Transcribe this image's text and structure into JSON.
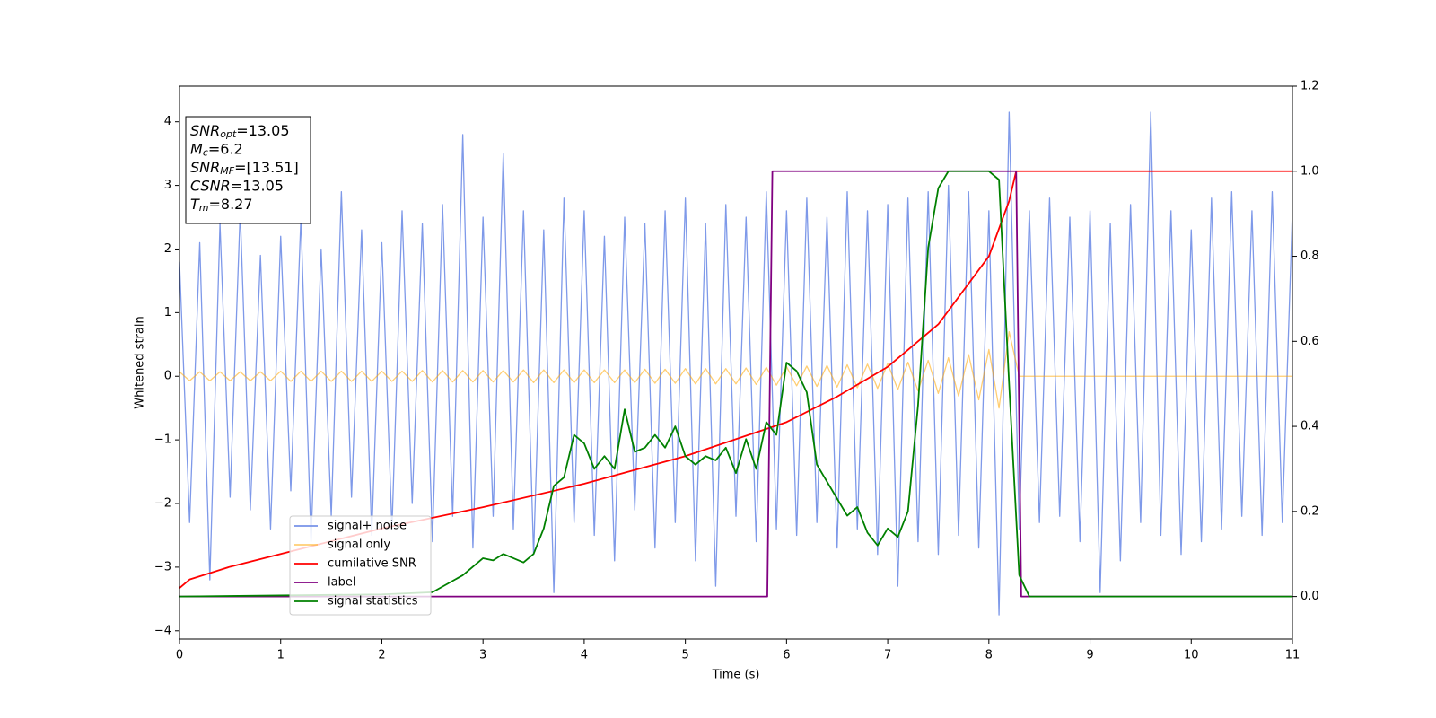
{
  "chart_data": {
    "type": "line",
    "xlabel": "Time (s)",
    "ylabel": "Whitened strain",
    "xlim": [
      0,
      11
    ],
    "ylim": [
      -4.13,
      4.56
    ],
    "y2lim": [
      -0.1,
      1.2
    ],
    "xticks": [
      0,
      1,
      2,
      3,
      4,
      5,
      6,
      7,
      8,
      9,
      10,
      11
    ],
    "yticks": [
      {
        "value": -4,
        "label": "−4"
      },
      {
        "value": -3,
        "label": "−3"
      },
      {
        "value": -2,
        "label": "−2"
      },
      {
        "value": -1,
        "label": "−1"
      },
      0,
      1,
      2,
      3,
      4
    ],
    "y2ticks": [
      {
        "value": 0,
        "label": "0.0"
      },
      0.2,
      0.4,
      0.6,
      0.8,
      {
        "value": 1,
        "label": "1.0"
      },
      1.2
    ],
    "legend": "lower-left",
    "annotations": [
      {
        "main": "SNR",
        "sub": "opt",
        "rest": "=13.05"
      },
      {
        "main": "M",
        "sub": "c",
        "rest": "=6.2"
      },
      {
        "main": "SNR",
        "sub": "MF",
        "rest": "=[13.51]"
      },
      {
        "main": "CSNR",
        "rest": "=13.05"
      },
      {
        "main": "T",
        "sub": "m",
        "rest": "=8.27"
      }
    ],
    "x": [
      0,
      0.1,
      0.2,
      0.3,
      0.4,
      0.5,
      0.6,
      0.7,
      0.8,
      0.9,
      1,
      1.1,
      1.2,
      1.3,
      1.4,
      1.5,
      1.6,
      1.7,
      1.8,
      1.9,
      2,
      2.1,
      2.2,
      2.3,
      2.4,
      2.5,
      2.6,
      2.7,
      2.8,
      2.9,
      3,
      3.1,
      3.2,
      3.3,
      3.4,
      3.5,
      3.6,
      3.7,
      3.8,
      3.9,
      4,
      4.1,
      4.2,
      4.3,
      4.4,
      4.5,
      4.6,
      4.7,
      4.8,
      4.9,
      5,
      5.1,
      5.2,
      5.3,
      5.4,
      5.5,
      5.6,
      5.7,
      5.8,
      5.9,
      6,
      6.1,
      6.2,
      6.3,
      6.4,
      6.5,
      6.6,
      6.7,
      6.8,
      6.9,
      7,
      7.1,
      7.2,
      7.3,
      7.4,
      7.5,
      7.6,
      7.7,
      7.8,
      7.9,
      8,
      8.1,
      8.2,
      8.3,
      8.4,
      8.5,
      8.6,
      8.7,
      8.8,
      8.9,
      9,
      9.1,
      9.2,
      9.3,
      9.4,
      9.5,
      9.6,
      9.7,
      9.8,
      9.9,
      10,
      10.1,
      10.2,
      10.3,
      10.4,
      10.5,
      10.6,
      10.7,
      10.8,
      10.9,
      11
    ],
    "series": [
      {
        "name": "signal+ noise",
        "color": "#7793e8",
        "values": [
          1.8,
          -2.3,
          2.1,
          -3.2,
          2.4,
          -1.9,
          2.6,
          -2.1,
          1.9,
          -2.4,
          2.2,
          -1.8,
          2.5,
          -2.6,
          2.0,
          -2.2,
          2.9,
          -1.9,
          2.3,
          -2.5,
          2.1,
          -2.4,
          2.6,
          -2.0,
          2.4,
          -2.6,
          2.7,
          -2.2,
          3.8,
          -2.7,
          2.5,
          -2.2,
          3.5,
          -2.4,
          2.6,
          -2.8,
          2.3,
          -3.4,
          2.8,
          -2.3,
          2.6,
          -2.5,
          2.2,
          -2.9,
          2.5,
          -2.1,
          2.4,
          -2.7,
          2.6,
          -2.3,
          2.8,
          -2.9,
          2.4,
          -3.3,
          2.7,
          -2.2,
          2.5,
          -2.6,
          2.9,
          -2.4,
          2.6,
          -2.5,
          2.8,
          -2.3,
          2.5,
          -2.7,
          2.9,
          -2.4,
          2.6,
          -2.8,
          2.7,
          -3.3,
          2.8,
          -2.6,
          2.9,
          -2.8,
          3.0,
          -2.5,
          2.9,
          -2.7,
          2.6,
          -3.75,
          4.15,
          -2.4,
          2.6,
          -2.3,
          2.8,
          -2.2,
          2.5,
          -2.6,
          2.6,
          -3.4,
          2.4,
          -2.9,
          2.7,
          -2.3,
          4.15,
          -2.5,
          2.6,
          -2.8,
          2.3,
          -2.6,
          2.8,
          -2.4,
          2.9,
          -2.2,
          2.6,
          -2.5,
          2.9,
          -2.3,
          2.6
        ]
      },
      {
        "name": "signal only",
        "color": "#ffa500",
        "values": [
          0.07,
          -0.07,
          0.07,
          -0.07,
          0.07,
          -0.07,
          0.07,
          -0.07,
          0.07,
          -0.07,
          0.08,
          -0.08,
          0.08,
          -0.08,
          0.08,
          -0.08,
          0.08,
          -0.08,
          0.08,
          -0.08,
          0.08,
          -0.08,
          0.08,
          -0.08,
          0.09,
          -0.09,
          0.09,
          -0.09,
          0.09,
          -0.09,
          0.09,
          -0.09,
          0.09,
          -0.09,
          0.1,
          -0.1,
          0.1,
          -0.1,
          0.1,
          -0.1,
          0.1,
          -0.1,
          0.1,
          -0.1,
          0.1,
          -0.1,
          0.11,
          -0.11,
          0.11,
          -0.11,
          0.12,
          -0.12,
          0.12,
          -0.12,
          0.12,
          -0.12,
          0.13,
          -0.13,
          0.14,
          -0.14,
          0.15,
          -0.15,
          0.16,
          -0.16,
          0.17,
          -0.17,
          0.18,
          -0.18,
          0.19,
          -0.19,
          0.2,
          -0.21,
          0.22,
          -0.23,
          0.25,
          -0.27,
          0.29,
          -0.31,
          0.34,
          -0.37,
          0.42,
          -0.5,
          0.7,
          0,
          0,
          0,
          0,
          0,
          0,
          0,
          0,
          0,
          0,
          0,
          0,
          0,
          0,
          0,
          0,
          0,
          0,
          0,
          0,
          0,
          0,
          0,
          0,
          0,
          0,
          0,
          0
        ]
      },
      {
        "name": "cumilative SNR",
        "color": "#ff0000",
        "axis": "y2",
        "x": [
          0,
          0.1,
          0.5,
          1,
          2,
          3,
          4,
          5,
          6,
          6.5,
          7,
          7.5,
          8,
          8.2,
          8.27,
          11
        ],
        "values": [
          0.02,
          0.04,
          0.07,
          0.1,
          0.16,
          0.21,
          0.265,
          0.33,
          0.41,
          0.47,
          0.54,
          0.64,
          0.8,
          0.93,
          1,
          1
        ]
      },
      {
        "name": "label",
        "color": "#800080",
        "axis": "y2",
        "x": [
          0,
          5.81,
          5.86,
          8.27,
          8.32,
          11
        ],
        "values": [
          0,
          0,
          1,
          1,
          0,
          0
        ]
      },
      {
        "name": "signal statistics",
        "color": "#008000",
        "axis": "y2",
        "x": [
          0,
          2,
          2.5,
          2.8,
          2.9,
          3,
          3.1,
          3.2,
          3.3,
          3.4,
          3.5,
          3.6,
          3.7,
          3.8,
          3.9,
          4,
          4.1,
          4.2,
          4.3,
          4.4,
          4.5,
          4.6,
          4.7,
          4.8,
          4.9,
          5,
          5.1,
          5.2,
          5.3,
          5.4,
          5.5,
          5.6,
          5.7,
          5.8,
          5.9,
          6,
          6.1,
          6.2,
          6.3,
          6.4,
          6.5,
          6.6,
          6.7,
          6.8,
          6.9,
          7,
          7.1,
          7.2,
          7.3,
          7.4,
          7.5,
          7.6,
          7.8,
          8,
          8.1,
          8.2,
          8.3,
          8.4,
          11
        ],
        "values": [
          0,
          0.005,
          0.01,
          0.05,
          0.07,
          0.09,
          0.085,
          0.1,
          0.09,
          0.08,
          0.1,
          0.16,
          0.26,
          0.28,
          0.38,
          0.36,
          0.3,
          0.33,
          0.3,
          0.44,
          0.34,
          0.35,
          0.38,
          0.35,
          0.4,
          0.33,
          0.31,
          0.33,
          0.32,
          0.35,
          0.29,
          0.37,
          0.3,
          0.41,
          0.38,
          0.55,
          0.53,
          0.48,
          0.31,
          0.27,
          0.23,
          0.19,
          0.21,
          0.15,
          0.12,
          0.16,
          0.14,
          0.2,
          0.45,
          0.82,
          0.96,
          1,
          1,
          1,
          0.98,
          0.5,
          0.05,
          0,
          0
        ]
      }
    ]
  }
}
